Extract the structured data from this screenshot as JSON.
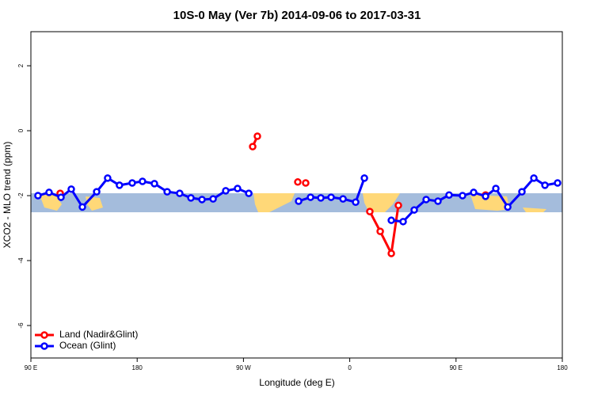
{
  "chart_data": {
    "type": "line",
    "title": "10S-0 May (Ver 7b)   2014-09-06 to 2017-03-31",
    "x_label": "Longitude (deg E)",
    "y_label": "XCO2 - MLO trend (ppm)",
    "xlim": [
      90,
      540
    ],
    "xticks": [
      {
        "value": 90,
        "label": "90 E"
      },
      {
        "value": 180,
        "label": "180"
      },
      {
        "value": 270,
        "label": "90 W"
      },
      {
        "value": 360,
        "label": "0"
      },
      {
        "value": 450,
        "label": "90 E"
      },
      {
        "value": 540,
        "label": "180"
      }
    ],
    "ylim": [
      -7.0,
      3.05
    ],
    "yticks": [
      -6,
      -4,
      -2,
      0,
      2
    ],
    "legend": "bottom-left",
    "series": [
      {
        "name": "Land (Nadir&Glint)",
        "color": "#ff0000",
        "x": [
          114.8,
          null,
          277.8,
          281.8,
          null,
          316,
          null,
          322.7,
          null,
          377,
          385.8,
          395.2,
          401.2,
          null,
          475
        ],
        "values": [
          -1.93,
          null,
          -0.49,
          -0.17,
          null,
          -1.58,
          null,
          -1.61,
          null,
          -2.49,
          -3.1,
          -3.78,
          -2.3,
          null,
          -1.98
        ]
      },
      {
        "name": "Ocean (Glint)",
        "color": "#0000ff",
        "x": [
          96,
          105.4,
          115.5,
          124.2,
          133.6,
          145.7,
          155,
          165,
          175.8,
          184.5,
          194.6,
          205.4,
          216,
          225.5,
          234.9,
          244.3,
          255,
          265,
          274.5,
          null,
          316.7,
          326.8,
          335.5,
          344.2,
          354.3,
          365,
          372.4,
          null,
          395.2,
          405.2,
          414.6,
          424.7,
          434.7,
          444.1,
          455.5,
          464.9,
          475,
          483.7,
          493.8,
          505.8,
          515.9,
          525.3,
          536
        ],
        "values": [
          -2.0,
          -1.9,
          -2.05,
          -1.8,
          -2.35,
          -1.88,
          -1.46,
          -1.68,
          -1.61,
          -1.56,
          -1.63,
          -1.88,
          -1.93,
          -2.07,
          -2.12,
          -2.1,
          -1.85,
          -1.78,
          -1.93,
          null,
          -2.17,
          -2.05,
          -2.07,
          -2.05,
          -2.1,
          -2.2,
          -1.46,
          null,
          -2.76,
          -2.8,
          -2.44,
          -2.12,
          -2.17,
          -1.98,
          -2.0,
          -1.9,
          -2.02,
          -1.78,
          -2.35,
          -1.88,
          -1.46,
          -1.68,
          -1.61
        ]
      }
    ]
  }
}
